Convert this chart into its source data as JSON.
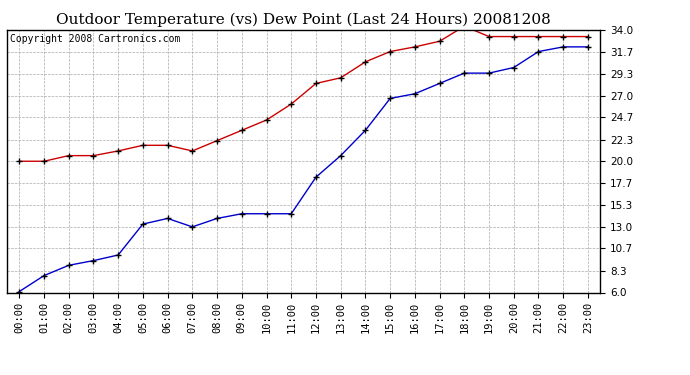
{
  "title": "Outdoor Temperature (vs) Dew Point (Last 24 Hours) 20081208",
  "copyright": "Copyright 2008 Cartronics.com",
  "x_labels": [
    "00:00",
    "01:00",
    "02:00",
    "03:00",
    "04:00",
    "05:00",
    "06:00",
    "07:00",
    "08:00",
    "09:00",
    "10:00",
    "11:00",
    "12:00",
    "13:00",
    "14:00",
    "15:00",
    "16:00",
    "17:00",
    "18:00",
    "19:00",
    "20:00",
    "21:00",
    "22:00",
    "23:00"
  ],
  "red_data": [
    20.0,
    20.0,
    20.6,
    20.6,
    21.1,
    21.7,
    21.7,
    21.1,
    22.2,
    23.3,
    24.4,
    26.1,
    28.3,
    28.9,
    30.6,
    31.7,
    32.2,
    32.8,
    34.4,
    33.3,
    33.3,
    33.3,
    33.3,
    33.3
  ],
  "blue_data": [
    6.1,
    7.8,
    8.9,
    9.4,
    10.0,
    13.3,
    13.9,
    13.0,
    13.9,
    14.4,
    14.4,
    14.4,
    18.3,
    20.6,
    23.3,
    26.7,
    27.2,
    28.3,
    29.4,
    29.4,
    30.0,
    31.7,
    32.2,
    32.2
  ],
  "red_color": "#cc0000",
  "blue_color": "#0000cc",
  "bg_color": "#ffffff",
  "plot_bg_color": "#ffffff",
  "grid_color": "#aaaaaa",
  "yticks": [
    6.0,
    8.3,
    10.7,
    13.0,
    15.3,
    17.7,
    20.0,
    22.3,
    24.7,
    27.0,
    29.3,
    31.7,
    34.0
  ],
  "ymin": 6.0,
  "ymax": 34.0,
  "title_fontsize": 11,
  "tick_fontsize": 7.5,
  "copyright_fontsize": 7
}
